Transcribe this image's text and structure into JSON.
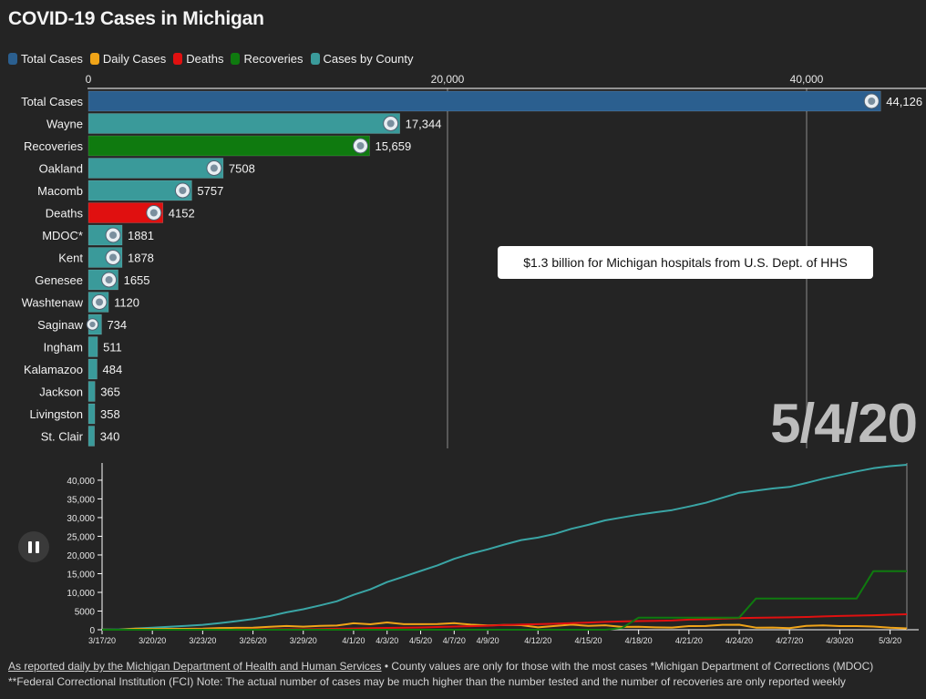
{
  "title": "COVID-19 Cases in Michigan",
  "legend": [
    {
      "label": "Total Cases",
      "color": "#2b5f8f"
    },
    {
      "label": "Daily Cases",
      "color": "#f0a418"
    },
    {
      "label": "Deaths",
      "color": "#e01010"
    },
    {
      "label": "Recoveries",
      "color": "#0f7a0f"
    },
    {
      "label": "Cases by County",
      "color": "#3a9a9a"
    }
  ],
  "annotation": "$1.3 billion for Michigan hospitals from U.S. Dept. of HHS",
  "current_date": "5/4/20",
  "footer": {
    "link_text": "As reported daily by the Michigan Department of Health and Human Services",
    "line1_rest": " • County values are only for those with the most cases *Michigan Department of Corrections (MDOC)",
    "line2": "**Federal Correctional Institution (FCI) Note: The actual number of cases may be much higher than the number tested and the number of recoveries are only reported weekly"
  },
  "chart_data": [
    {
      "type": "bar",
      "orientation": "horizontal",
      "x_ticks": [
        "0",
        "20,000",
        "40,000"
      ],
      "x_tick_values": [
        0,
        20000,
        40000
      ],
      "xlim": [
        0,
        45000
      ],
      "bars": [
        {
          "label": "Total Cases",
          "value": 44126,
          "display": "44,126",
          "category": "Total Cases",
          "color": "#2b5f8f"
        },
        {
          "label": "Wayne",
          "value": 17344,
          "display": "17,344",
          "category": "Cases by County",
          "color": "#3a9a9a"
        },
        {
          "label": "Recoveries",
          "value": 15659,
          "display": "15,659",
          "category": "Recoveries",
          "color": "#0f7a0f"
        },
        {
          "label": "Oakland",
          "value": 7508,
          "display": "7508",
          "category": "Cases by County",
          "color": "#3a9a9a"
        },
        {
          "label": "Macomb",
          "value": 5757,
          "display": "5757",
          "category": "Cases by County",
          "color": "#3a9a9a"
        },
        {
          "label": "Deaths",
          "value": 4152,
          "display": "4152",
          "category": "Deaths",
          "color": "#e01010"
        },
        {
          "label": "MDOC*",
          "value": 1881,
          "display": "1881",
          "category": "Cases by County",
          "color": "#3a9a9a"
        },
        {
          "label": "Kent",
          "value": 1878,
          "display": "1878",
          "category": "Cases by County",
          "color": "#3a9a9a"
        },
        {
          "label": "Genesee",
          "value": 1655,
          "display": "1655",
          "category": "Cases by County",
          "color": "#3a9a9a"
        },
        {
          "label": "Washtenaw",
          "value": 1120,
          "display": "1120",
          "category": "Cases by County",
          "color": "#3a9a9a"
        },
        {
          "label": "Saginaw",
          "value": 734,
          "display": "734",
          "category": "Cases by County",
          "color": "#3a9a9a"
        },
        {
          "label": "Ingham",
          "value": 511,
          "display": "511",
          "category": "Cases by County",
          "color": "#3a9a9a"
        },
        {
          "label": "Kalamazoo",
          "value": 484,
          "display": "484",
          "category": "Cases by County",
          "color": "#3a9a9a"
        },
        {
          "label": "Jackson",
          "value": 365,
          "display": "365",
          "category": "Cases by County",
          "color": "#3a9a9a"
        },
        {
          "label": "Livingston",
          "value": 358,
          "display": "358",
          "category": "Cases by County",
          "color": "#3a9a9a"
        },
        {
          "label": "St. Clair",
          "value": 340,
          "display": "340",
          "category": "Cases by County",
          "color": "#3a9a9a"
        }
      ]
    },
    {
      "type": "line",
      "x": [
        "3/17/20",
        "3/18/20",
        "3/19/20",
        "3/20/20",
        "3/21/20",
        "3/22/20",
        "3/23/20",
        "3/24/20",
        "3/25/20",
        "3/26/20",
        "3/27/20",
        "3/28/20",
        "3/29/20",
        "3/30/20",
        "3/31/20",
        "4/1/20",
        "4/2/20",
        "4/3/20",
        "4/4/20",
        "4/5/20",
        "4/6/20",
        "4/7/20",
        "4/8/20",
        "4/9/20",
        "4/10/20",
        "4/11/20",
        "4/12/20",
        "4/13/20",
        "4/14/20",
        "4/15/20",
        "4/16/20",
        "4/17/20",
        "4/18/20",
        "4/19/20",
        "4/20/20",
        "4/21/20",
        "4/22/20",
        "4/23/20",
        "4/24/20",
        "4/25/20",
        "4/26/20",
        "4/27/20",
        "4/28/20",
        "4/29/20",
        "4/30/20",
        "5/1/20",
        "5/2/20",
        "5/3/20",
        "5/4/20"
      ],
      "x_tick_labels": [
        "3/17/20",
        "3/20/20",
        "3/23/20",
        "3/26/20",
        "3/29/20",
        "4/1/20",
        "4/3/20",
        "4/5/20",
        "4/7/20",
        "4/9/20",
        "4/12/20",
        "4/15/20",
        "4/18/20",
        "4/21/20",
        "4/24/20",
        "4/27/20",
        "4/30/20",
        "5/3/20"
      ],
      "y_ticks": [
        "0",
        "5000",
        "10,000",
        "15,000",
        "20,000",
        "25,000",
        "30,000",
        "35,000",
        "40,000"
      ],
      "y_tick_values": [
        0,
        5000,
        10000,
        15000,
        20000,
        25000,
        30000,
        35000,
        40000
      ],
      "ylim": [
        0,
        44126
      ],
      "series": [
        {
          "name": "Total Cases",
          "color": "#3aa5a5",
          "values": [
            53,
            65,
            336,
            549,
            787,
            1035,
            1328,
            1791,
            2294,
            2856,
            3657,
            4650,
            5486,
            6498,
            7615,
            9334,
            10791,
            12744,
            14225,
            15718,
            17221,
            18970,
            20346,
            21504,
            22783,
            23993,
            24638,
            25635,
            27001,
            28059,
            29263,
            30023,
            30791,
            31424,
            32000,
            32967,
            33966,
            35291,
            36641,
            37203,
            37778,
            38210,
            39262,
            40399,
            41379,
            42356,
            43207,
            43754,
            44126
          ]
        },
        {
          "name": "Daily Cases",
          "color": "#f0a418",
          "values": [
            20,
            12,
            271,
            213,
            238,
            248,
            293,
            463,
            503,
            562,
            801,
            993,
            836,
            1012,
            1117,
            1719,
            1457,
            1953,
            1481,
            1493,
            1503,
            1749,
            1376,
            1158,
            1279,
            1210,
            645,
            997,
            1366,
            1058,
            1204,
            760,
            768,
            633,
            576,
            967,
            999,
            1325,
            1350,
            562,
            575,
            432,
            1052,
            1137,
            980,
            977,
            851,
            547,
            372
          ]
        },
        {
          "name": "Deaths",
          "color": "#e01010",
          "values": [
            0,
            0,
            1,
            3,
            5,
            8,
            15,
            24,
            43,
            60,
            92,
            111,
            132,
            184,
            259,
            337,
            417,
            479,
            540,
            617,
            727,
            845,
            959,
            1076,
            1281,
            1392,
            1487,
            1602,
            1768,
            1921,
            2093,
            2227,
            2308,
            2391,
            2468,
            2700,
            2813,
            2977,
            3085,
            3192,
            3274,
            3315,
            3407,
            3567,
            3670,
            3789,
            3866,
            4020,
            4152
          ]
        },
        {
          "name": "Recoveries",
          "color": "#0f7a0f",
          "values": [
            0,
            0,
            0,
            0,
            0,
            0,
            0,
            0,
            0,
            0,
            0,
            0,
            0,
            0,
            0,
            0,
            0,
            0,
            0,
            0,
            0,
            0,
            0,
            0,
            0,
            0,
            0,
            0,
            0,
            0,
            0,
            433,
            3237,
            3237,
            3237,
            3237,
            3237,
            3237,
            3237,
            8342,
            8342,
            8342,
            8342,
            8342,
            8342,
            8342,
            15659,
            15659,
            15659
          ]
        }
      ]
    }
  ]
}
